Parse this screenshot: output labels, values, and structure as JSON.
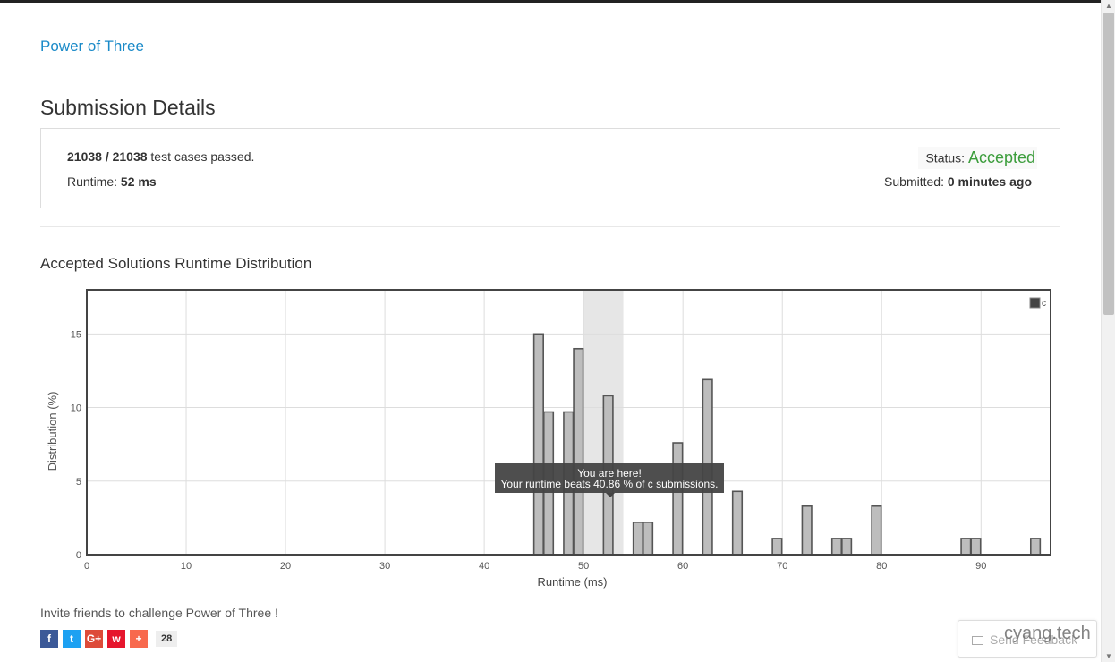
{
  "problem_link": "Power of Three",
  "page_title": "Submission Details",
  "details": {
    "passed": "21038 / 21038",
    "passed_suffix": " test cases passed.",
    "runtime_label": "Runtime: ",
    "runtime_value": "52 ms",
    "status_label": "Status: ",
    "status_value": "Accepted",
    "submitted_label": "Submitted: ",
    "submitted_value": "0 minutes ago"
  },
  "distribution_title": "Accepted Solutions Runtime Distribution",
  "chart_data": {
    "type": "bar",
    "xlabel": "Runtime (ms)",
    "ylabel": "Distribution (%)",
    "xlim": [
      0,
      97
    ],
    "ylim": [
      0,
      18
    ],
    "xticks": [
      0,
      10,
      20,
      30,
      40,
      50,
      60,
      70,
      80,
      90
    ],
    "yticks": [
      0,
      5,
      10,
      15
    ],
    "legend": "c",
    "legend_position": "top-right",
    "highlight_range": [
      50,
      54
    ],
    "series": [
      {
        "name": "c",
        "x": [
          45,
          46,
          48,
          49,
          52,
          55,
          56,
          59,
          62,
          65,
          69,
          72,
          75,
          76,
          79,
          88,
          89,
          95
        ],
        "values": [
          15.0,
          9.7,
          9.7,
          14.0,
          10.8,
          2.2,
          2.2,
          7.6,
          11.9,
          4.3,
          1.1,
          3.3,
          1.1,
          1.1,
          3.3,
          1.1,
          1.1,
          1.1
        ]
      }
    ],
    "tooltip_line1": "You are here!",
    "tooltip_line2": "Your runtime beats 40.86 % of c submissions."
  },
  "invite_text": "Invite friends to challenge Power of Three !",
  "social": {
    "buttons": [
      {
        "name": "facebook",
        "glyph": "f",
        "color": "#3b5998"
      },
      {
        "name": "twitter",
        "glyph": "t",
        "color": "#1da1f2"
      },
      {
        "name": "google-plus",
        "glyph": "G+",
        "color": "#dd4b39"
      },
      {
        "name": "weibo",
        "glyph": "w",
        "color": "#e6162d"
      },
      {
        "name": "more",
        "glyph": "+",
        "color": "#f8694d"
      }
    ],
    "count": "28"
  },
  "feedback_label": "Send Feedback",
  "watermark": "cyang.tech"
}
